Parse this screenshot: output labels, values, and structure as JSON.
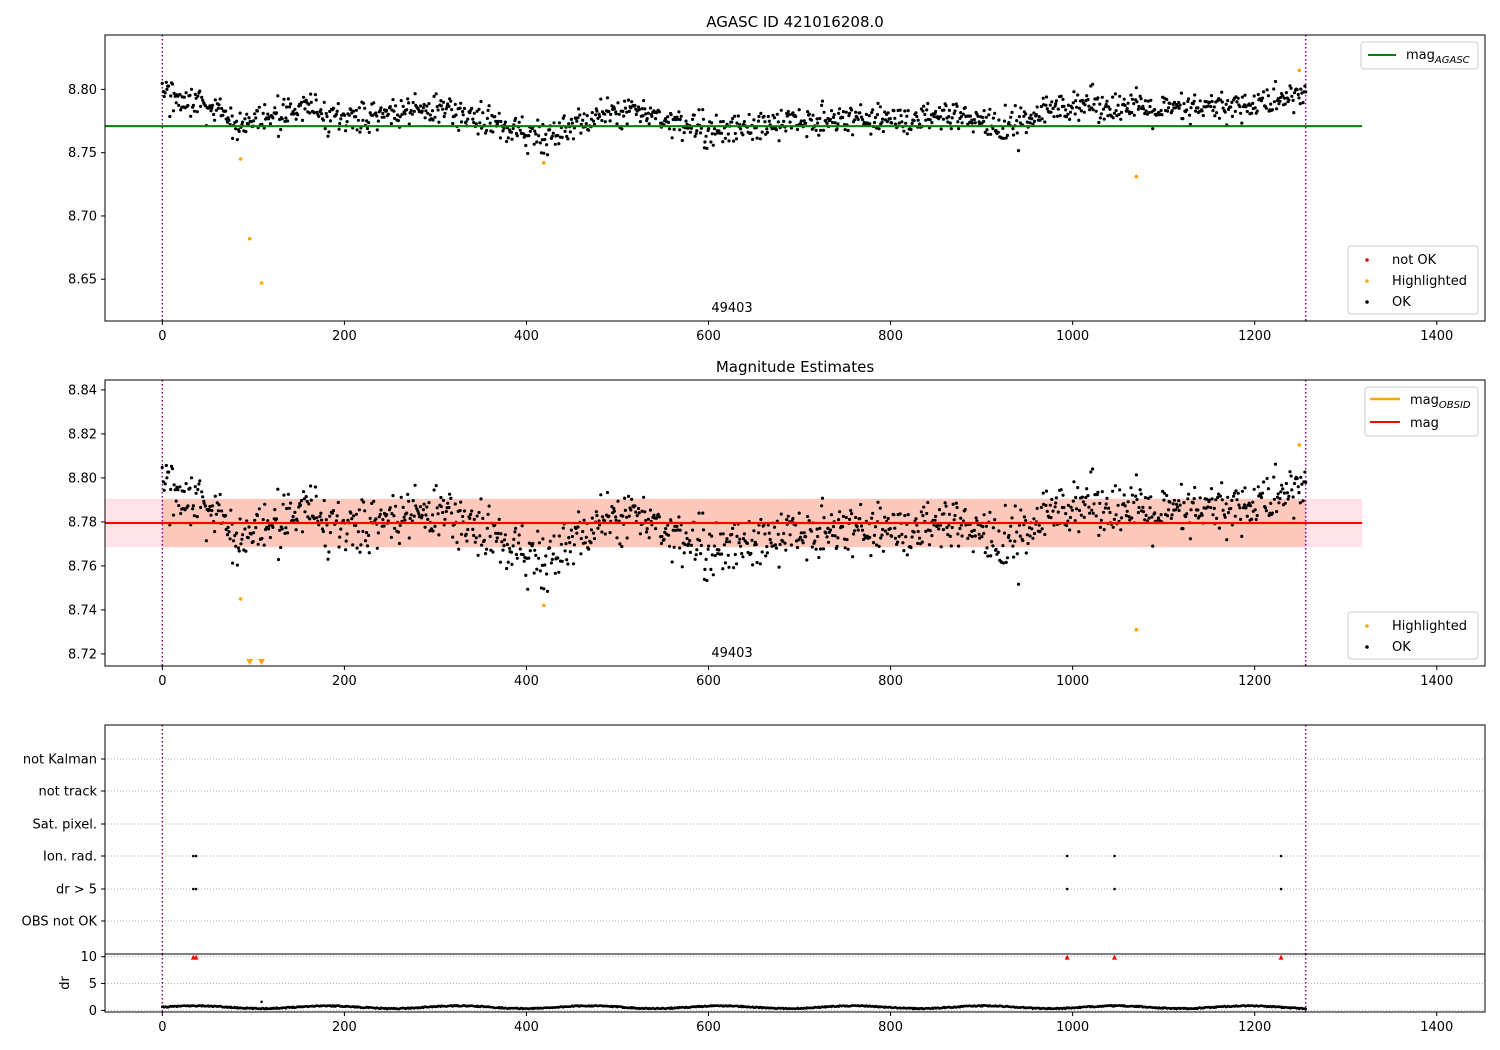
{
  "colors": {
    "agasc_line": "#008000",
    "mag_line": "#ff0000",
    "obsid_line": "#ffa500",
    "highlighted": "#ffa500",
    "not_ok": "#ff0000",
    "ok": "#000000",
    "vline": "#800080",
    "band_outer": "#ffc0cb",
    "band_inner": "#ffa07a"
  },
  "chart_data": [
    {
      "type": "scatter",
      "title": "AGASC ID 421016208.0",
      "xlim": [
        -63,
        1453
      ],
      "ylim": [
        8.617,
        8.843
      ],
      "x_ticks": [
        0,
        200,
        400,
        600,
        800,
        1000,
        1200,
        1400
      ],
      "y_ticks": [
        8.65,
        8.7,
        8.75,
        8.8
      ],
      "y_tick_labels": [
        "8.65",
        "8.70",
        "8.75",
        "8.80"
      ],
      "annotation": "49403",
      "annotation_x": 630,
      "vlines": [
        0,
        1256
      ],
      "hlines": [
        {
          "y": 8.771,
          "x0": -63,
          "x1": 1318,
          "series": "mag_agasc"
        }
      ],
      "legend_upper": [
        {
          "label": "mag",
          "sub": "AGASC",
          "marker": "line",
          "color": "#008000"
        }
      ],
      "legend_lower": [
        {
          "label": "not OK",
          "marker": "dot",
          "color": "#ff0000"
        },
        {
          "label": "Highlighted",
          "marker": "dot",
          "color": "#ffa500"
        },
        {
          "label": "OK",
          "marker": "dot",
          "color": "#000000"
        }
      ],
      "series": [
        {
          "name": "Highlighted",
          "color": "#ffa500",
          "x": [
            86,
            96,
            109,
            419,
            1070,
            1249
          ],
          "y": [
            8.745,
            8.682,
            8.647,
            8.742,
            8.731,
            8.815
          ]
        },
        {
          "name": "OK",
          "color": "#000000",
          "x_range": [
            0,
            1256
          ],
          "n": 1250,
          "trend_x": [
            0,
            40,
            80,
            100,
            150,
            200,
            300,
            400,
            420,
            500,
            550,
            600,
            700,
            800,
            900,
            920,
            1000,
            1100,
            1200,
            1256
          ],
          "trend_y": [
            8.797,
            8.79,
            8.77,
            8.775,
            8.785,
            8.776,
            8.786,
            8.765,
            8.762,
            8.785,
            8.779,
            8.766,
            8.776,
            8.777,
            8.776,
            8.768,
            8.79,
            8.783,
            8.788,
            8.796
          ],
          "scatter": 0.008
        }
      ]
    },
    {
      "type": "scatter",
      "title": "Magnitude Estimates",
      "xlim": [
        -63,
        1453
      ],
      "ylim": [
        8.7145,
        8.8445
      ],
      "x_ticks": [
        0,
        200,
        400,
        600,
        800,
        1000,
        1200,
        1400
      ],
      "y_ticks": [
        8.72,
        8.74,
        8.76,
        8.78,
        8.8,
        8.82,
        8.84
      ],
      "y_tick_labels": [
        "8.72",
        "8.74",
        "8.76",
        "8.78",
        "8.80",
        "8.82",
        "8.84"
      ],
      "annotation": "49403",
      "annotation_x": 630,
      "vlines": [
        0,
        1256
      ],
      "bands": [
        {
          "x0": -63,
          "x1": 1318,
          "y0": 8.7685,
          "y1": 8.7905,
          "color": "#ffc0cb",
          "opacity": 0.45
        },
        {
          "x0": 0,
          "x1": 1256,
          "y0": 8.7685,
          "y1": 8.7905,
          "color": "#ffa07a",
          "opacity": 0.4
        }
      ],
      "hlines": [
        {
          "y": 8.7795,
          "x0": -63,
          "x1": 1318,
          "series": "mag"
        },
        {
          "y": 8.7795,
          "x0": 0,
          "x1": 1256,
          "series": "mag_obsid"
        }
      ],
      "legend_upper": [
        {
          "label": "mag",
          "sub": "OBSID",
          "marker": "line",
          "color": "#ffa500"
        },
        {
          "label": "mag",
          "marker": "line",
          "color": "#ff0000"
        }
      ],
      "legend_lower": [
        {
          "label": "Highlighted",
          "marker": "dot",
          "color": "#ffa500"
        },
        {
          "label": "OK",
          "marker": "dot",
          "color": "#000000"
        }
      ],
      "series": [
        {
          "name": "Highlighted",
          "color": "#ffa500",
          "x": [
            86,
            419,
            1070,
            1249
          ],
          "y": [
            8.745,
            8.742,
            8.731,
            8.815
          ],
          "clipped_x": [
            96,
            109
          ]
        },
        {
          "name": "OK",
          "color": "#000000",
          "x_range": [
            0,
            1256
          ],
          "n": 1250,
          "trend_x": [
            0,
            40,
            80,
            100,
            150,
            200,
            300,
            400,
            420,
            500,
            550,
            600,
            700,
            800,
            900,
            920,
            1000,
            1100,
            1200,
            1256
          ],
          "trend_y": [
            8.797,
            8.79,
            8.77,
            8.775,
            8.785,
            8.776,
            8.786,
            8.765,
            8.762,
            8.785,
            8.779,
            8.766,
            8.776,
            8.777,
            8.776,
            8.768,
            8.79,
            8.783,
            8.788,
            8.796
          ],
          "scatter": 0.008
        }
      ]
    },
    {
      "type": "scatter",
      "title": "",
      "xlim": [
        -63,
        1453
      ],
      "categories": [
        "not Kalman",
        "not track",
        "Sat. pixel.",
        "Ion. rad.",
        "dr > 5",
        "OBS not OK"
      ],
      "flags": {
        "Ion. rad.": [
          34,
          37,
          994,
          1046,
          1229
        ],
        "dr > 5": [
          34,
          37,
          994,
          1046,
          1229
        ]
      },
      "vlines": [
        0,
        1256
      ]
    },
    {
      "type": "scatter",
      "title": "",
      "xlim": [
        -63,
        1453
      ],
      "ylim": [
        -0.3,
        10.5
      ],
      "ylabel": "dr",
      "x_ticks": [
        0,
        200,
        400,
        600,
        800,
        1000,
        1200,
        1400
      ],
      "y_ticks": [
        0,
        5,
        10
      ],
      "y_tick_labels": [
        "0",
        "5",
        "10"
      ],
      "vlines": [
        0,
        1256
      ],
      "clipped_red_x": [
        34,
        37,
        994,
        1046,
        1229
      ],
      "series": [
        {
          "name": "dr",
          "color": "#000000",
          "x_range": [
            0,
            1256
          ],
          "n": 1250,
          "mean": 0.6,
          "amp": 0.25,
          "scatter": 0.2,
          "outliers_x": [
            109
          ],
          "outliers_y": [
            1.6
          ]
        }
      ]
    }
  ]
}
